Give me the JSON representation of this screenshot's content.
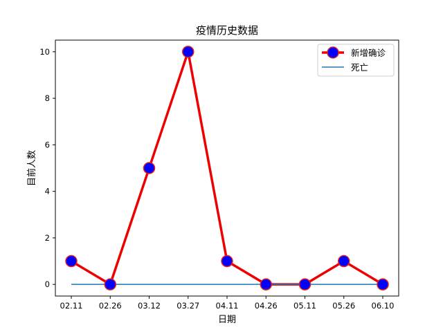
{
  "chart_data": {
    "type": "line",
    "title": "疫情历史数据",
    "xlabel": "日期",
    "ylabel": "目前人数",
    "categories": [
      "02.11",
      "02.26",
      "03.12",
      "03.27",
      "04.11",
      "04.26",
      "05.11",
      "05.26",
      "06.10"
    ],
    "ylim": [
      -0.5,
      10.5
    ],
    "yticks": [
      0,
      2,
      4,
      6,
      8,
      10
    ],
    "grid": false,
    "legend_position": "top-right",
    "series": [
      {
        "name": "新增确诊",
        "values": [
          1,
          0,
          5,
          10,
          1,
          0,
          0,
          1,
          0
        ],
        "line_color": "#ee0000",
        "marker_face": "#0000ff",
        "marker_edge": "#dd2222"
      },
      {
        "name": "死亡",
        "values": [
          0,
          0,
          0,
          0,
          0,
          0,
          0,
          0,
          0
        ],
        "line_color": "#1f77b4"
      }
    ]
  }
}
